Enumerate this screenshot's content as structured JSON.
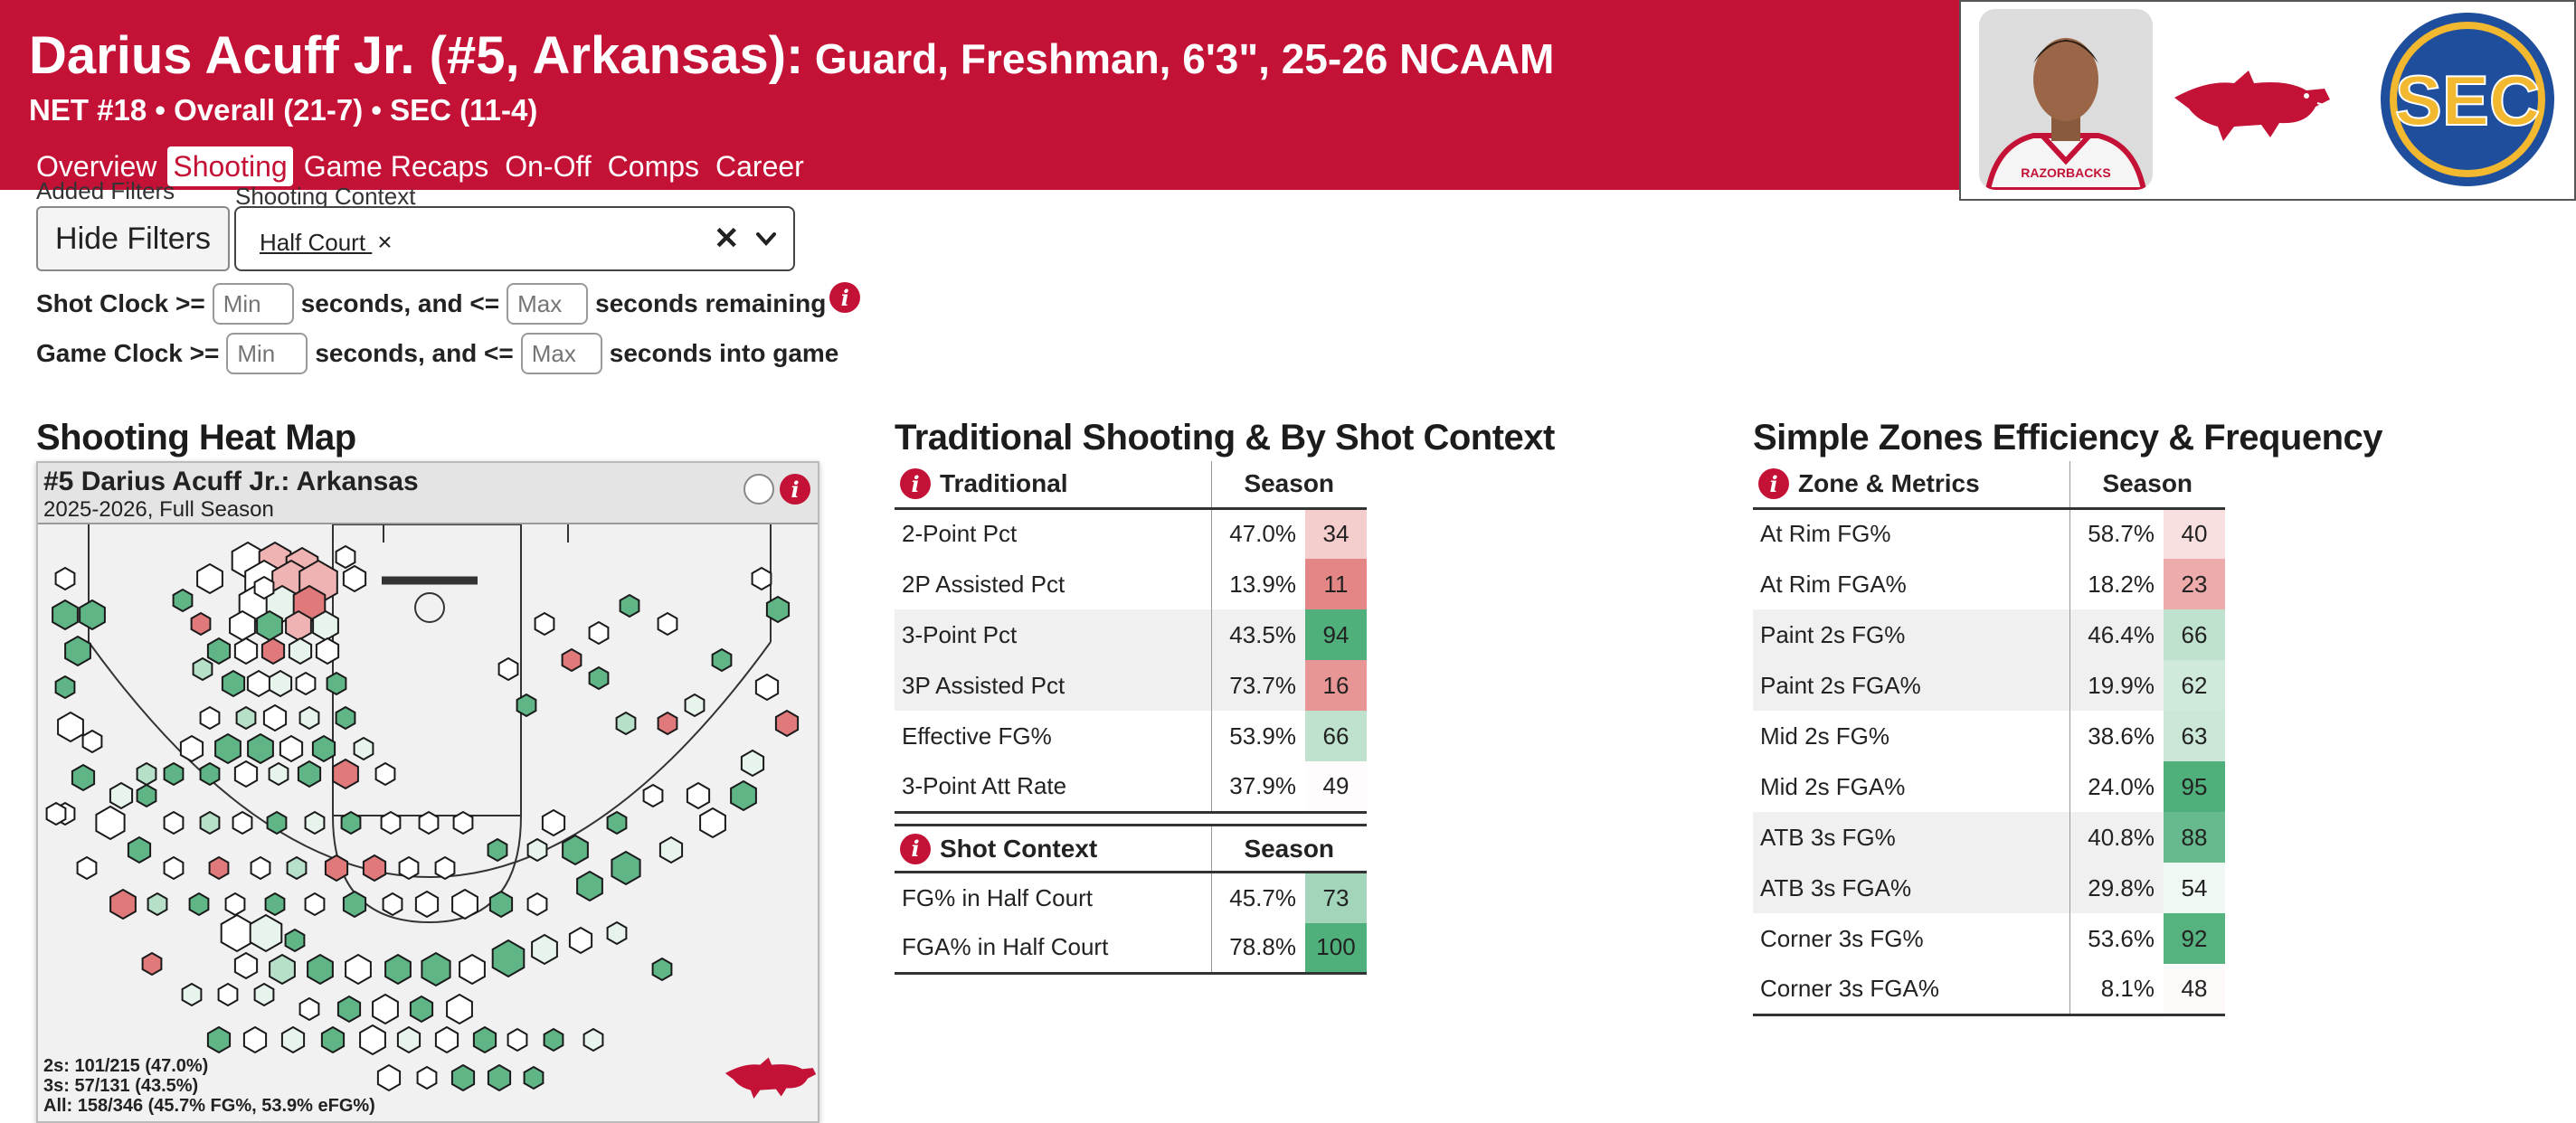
{
  "header": {
    "player_name": "Darius Acuff Jr. (#5, Arkansas):",
    "player_desc": "Guard, Freshman, 6'3\", 25-26 NCAAM",
    "record": "NET #18 • Overall (21-7) • SEC (11-4)",
    "jersey_text": "RAZORBACKS",
    "sec_text": "SEC",
    "tabs": [
      "Overview",
      "Shooting",
      "Game Recaps",
      "On-Off",
      "Comps",
      "Career"
    ],
    "active_tab": "Shooting"
  },
  "filters": {
    "added_filters_label": "Added Filters",
    "hide_button": "Hide Filters",
    "shooting_context_label": "Shooting Context",
    "selected_chip": "Half Court",
    "chip_remove": "×",
    "clear_glyph": "✕",
    "shot_clock": {
      "prefix": "Shot Clock >=",
      "min_placeholder": "Min",
      "mid": "seconds, and <=",
      "max_placeholder": "Max",
      "suffix": "seconds remaining"
    },
    "game_clock": {
      "prefix": "Game Clock >=",
      "min_placeholder": "Min",
      "mid": "seconds, and <=",
      "max_placeholder": "Max",
      "suffix": "seconds into game"
    },
    "info_glyph": "i"
  },
  "heatmap": {
    "section_title": "Shooting Heat Map",
    "card_title": "#5 Darius Acuff Jr.: Arkansas",
    "card_subtitle": "2025-2026, Full Season",
    "stats": [
      "2s: 101/215 (47.0%)",
      "3s: 57/131 (43.5%)",
      "All: 158/346 (45.7% FG%, 53.9% eFG%)"
    ]
  },
  "traditional": {
    "section_title": "Traditional Shooting & By Shot Context",
    "group1_header": "Traditional",
    "group2_header": "Shot Context",
    "season_header": "Season",
    "rows": [
      {
        "label": "2-Point Pct",
        "value": "47.0%",
        "rank": 34
      },
      {
        "label": "2P Assisted Pct",
        "value": "13.9%",
        "rank": 11
      },
      {
        "label": "3-Point Pct",
        "value": "43.5%",
        "rank": 94
      },
      {
        "label": "3P Assisted Pct",
        "value": "73.7%",
        "rank": 16
      },
      {
        "label": "Effective FG%",
        "value": "53.9%",
        "rank": 66
      },
      {
        "label": "3-Point Att Rate",
        "value": "37.9%",
        "rank": 49
      }
    ],
    "context_rows": [
      {
        "label": "FG% in Half Court",
        "value": "45.7%",
        "rank": 73
      },
      {
        "label": "FGA% in Half Court",
        "value": "78.8%",
        "rank": 100
      }
    ]
  },
  "zones": {
    "section_title": "Simple Zones Efficiency & Frequency",
    "header": "Zone & Metrics",
    "season_header": "Season",
    "rows": [
      {
        "label": "At Rim FG%",
        "value": "58.7%",
        "rank": 40
      },
      {
        "label": "At Rim FGA%",
        "value": "18.2%",
        "rank": 23
      },
      {
        "label": "Paint 2s FG%",
        "value": "46.4%",
        "rank": 66
      },
      {
        "label": "Paint 2s FGA%",
        "value": "19.9%",
        "rank": 62
      },
      {
        "label": "Mid 2s FG%",
        "value": "38.6%",
        "rank": 63
      },
      {
        "label": "Mid 2s FGA%",
        "value": "24.0%",
        "rank": 95
      },
      {
        "label": "ATB 3s FG%",
        "value": "40.8%",
        "rank": 88
      },
      {
        "label": "ATB 3s FGA%",
        "value": "29.8%",
        "rank": 54
      },
      {
        "label": "Corner 3s FG%",
        "value": "53.6%",
        "rank": 92
      },
      {
        "label": "Corner 3s FGA%",
        "value": "8.1%",
        "rank": 48
      }
    ]
  },
  "colors": {
    "brand_red": "#c41236",
    "good": "#4fb07c",
    "bad": "#e07a7a",
    "sec_blue": "#1f4e9c",
    "sec_gold": "#f2b830"
  }
}
